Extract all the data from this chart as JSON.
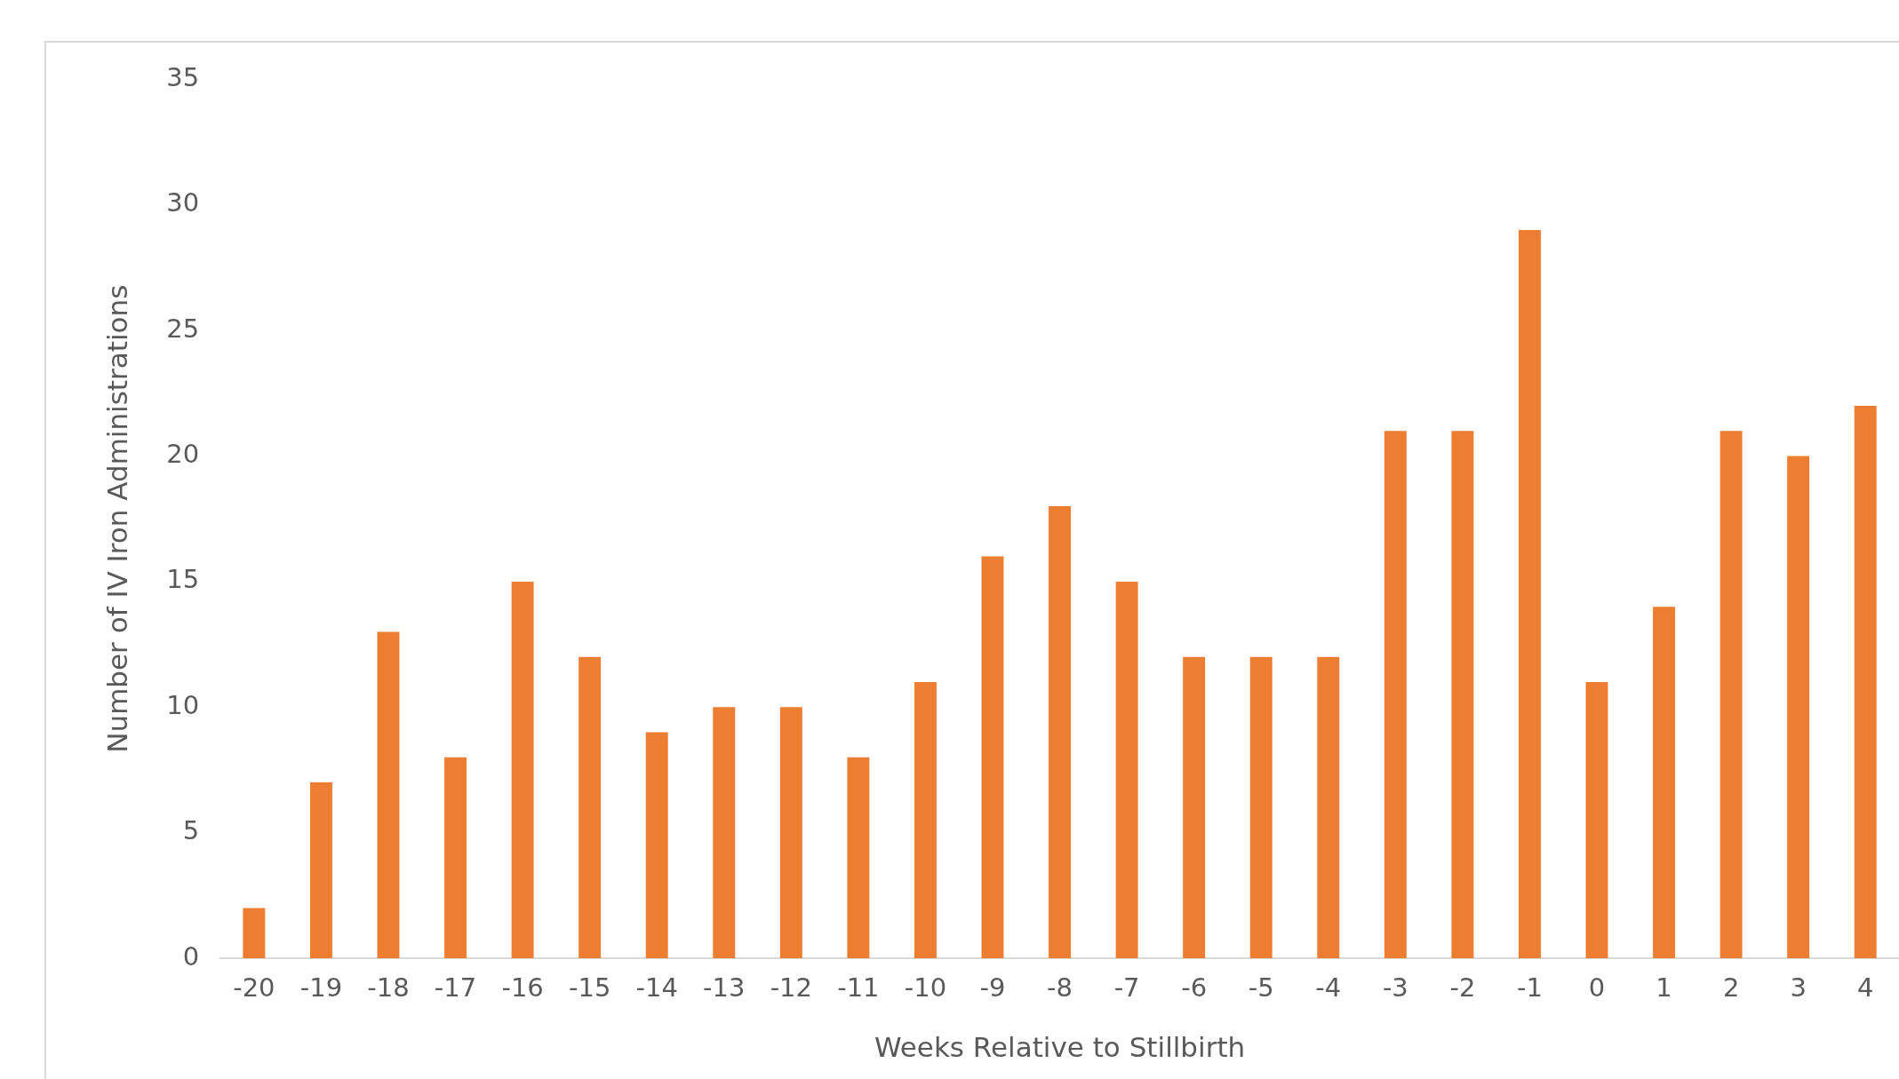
{
  "chart_data": {
    "type": "bar",
    "xlabel": "Weeks Relative to Stillbirth",
    "ylabel": "Number of IV Iron Administrations",
    "categories": [
      "-20",
      "-19",
      "-18",
      "-17",
      "-16",
      "-15",
      "-14",
      "-13",
      "-12",
      "-11",
      "-10",
      "-9",
      "-8",
      "-7",
      "-6",
      "-5",
      "-4",
      "-3",
      "-2",
      "-1",
      "0",
      "1",
      "2",
      "3",
      "4"
    ],
    "values": [
      2,
      7,
      13,
      8,
      15,
      12,
      9,
      10,
      10,
      8,
      11,
      16,
      18,
      15,
      12,
      12,
      12,
      21,
      21,
      29,
      11,
      14,
      21,
      20,
      22
    ],
    "color": "#ed7d31",
    "ylim": [
      0,
      35
    ],
    "yticks": [
      0,
      5,
      10,
      15,
      20,
      25,
      30,
      35
    ],
    "grid": false,
    "legend": false
  }
}
